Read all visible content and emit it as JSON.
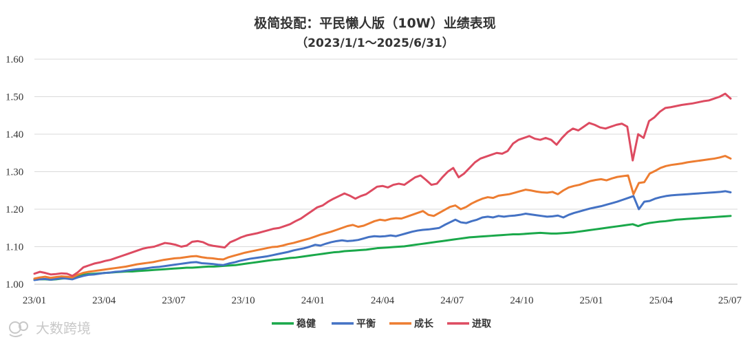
{
  "chart_data": {
    "type": "line",
    "title": "极简投配：平民懒人版（10W）业绩表现",
    "subtitle": "（2023/1/1～2025/6/31）",
    "xlabel": "",
    "ylabel": "",
    "ylim": [
      1.0,
      1.6
    ],
    "y_ticks": [
      "1.00",
      "1.10",
      "1.20",
      "1.30",
      "1.40",
      "1.50",
      "1.60"
    ],
    "x_ticks": [
      "23/01",
      "23/04",
      "23/07",
      "23/10",
      "24/01",
      "24/04",
      "24/07",
      "24/10",
      "25/01",
      "25/04",
      "25/07"
    ],
    "x_range": [
      "2023-01",
      "2025-07"
    ],
    "grid": "horizontal",
    "legend_position": "bottom",
    "series": [
      {
        "name": "稳健",
        "color": "#1aa84a",
        "values": [
          1.012,
          1.013,
          1.013,
          1.012,
          1.013,
          1.015,
          1.016,
          1.018,
          1.023,
          1.025,
          1.027,
          1.028,
          1.029,
          1.03,
          1.031,
          1.032,
          1.033,
          1.034,
          1.034,
          1.035,
          1.036,
          1.037,
          1.038,
          1.039,
          1.04,
          1.041,
          1.042,
          1.043,
          1.044,
          1.044,
          1.045,
          1.046,
          1.047,
          1.047,
          1.048,
          1.049,
          1.05,
          1.051,
          1.053,
          1.055,
          1.057,
          1.059,
          1.061,
          1.063,
          1.065,
          1.066,
          1.068,
          1.07,
          1.071,
          1.073,
          1.075,
          1.077,
          1.079,
          1.081,
          1.083,
          1.085,
          1.086,
          1.088,
          1.089,
          1.09,
          1.091,
          1.092,
          1.094,
          1.096,
          1.097,
          1.098,
          1.099,
          1.1,
          1.101,
          1.103,
          1.105,
          1.107,
          1.109,
          1.111,
          1.113,
          1.115,
          1.117,
          1.119,
          1.121,
          1.123,
          1.125,
          1.126,
          1.127,
          1.128,
          1.129,
          1.13,
          1.131,
          1.132,
          1.133,
          1.133,
          1.134,
          1.135,
          1.136,
          1.137,
          1.136,
          1.135,
          1.135,
          1.136,
          1.137,
          1.138,
          1.14,
          1.142,
          1.144,
          1.146,
          1.148,
          1.15,
          1.152,
          1.154,
          1.156,
          1.158,
          1.16,
          1.155,
          1.16,
          1.163,
          1.165,
          1.167,
          1.168,
          1.17,
          1.172,
          1.173,
          1.174,
          1.175,
          1.176,
          1.177,
          1.178,
          1.179,
          1.18,
          1.181,
          1.182
        ]
      },
      {
        "name": "平衡",
        "color": "#4472c4",
        "values": [
          1.011,
          1.013,
          1.014,
          1.012,
          1.014,
          1.016,
          1.015,
          1.013,
          1.018,
          1.022,
          1.025,
          1.026,
          1.028,
          1.03,
          1.031,
          1.033,
          1.034,
          1.036,
          1.038,
          1.04,
          1.041,
          1.043,
          1.045,
          1.046,
          1.048,
          1.05,
          1.052,
          1.054,
          1.056,
          1.058,
          1.059,
          1.056,
          1.055,
          1.054,
          1.052,
          1.051,
          1.055,
          1.058,
          1.062,
          1.065,
          1.068,
          1.07,
          1.072,
          1.074,
          1.077,
          1.08,
          1.083,
          1.086,
          1.09,
          1.093,
          1.096,
          1.1,
          1.105,
          1.103,
          1.108,
          1.112,
          1.115,
          1.117,
          1.115,
          1.116,
          1.118,
          1.122,
          1.126,
          1.128,
          1.127,
          1.128,
          1.13,
          1.128,
          1.132,
          1.136,
          1.14,
          1.143,
          1.145,
          1.146,
          1.148,
          1.15,
          1.158,
          1.165,
          1.172,
          1.165,
          1.163,
          1.168,
          1.172,
          1.178,
          1.18,
          1.178,
          1.182,
          1.18,
          1.182,
          1.183,
          1.185,
          1.188,
          1.186,
          1.184,
          1.182,
          1.18,
          1.181,
          1.183,
          1.178,
          1.185,
          1.19,
          1.194,
          1.198,
          1.202,
          1.205,
          1.208,
          1.212,
          1.216,
          1.22,
          1.225,
          1.23,
          1.235,
          1.2,
          1.22,
          1.222,
          1.228,
          1.232,
          1.235,
          1.237,
          1.238,
          1.239,
          1.24,
          1.241,
          1.242,
          1.243,
          1.244,
          1.245,
          1.246,
          1.248,
          1.245
        ]
      },
      {
        "name": "成长",
        "color": "#ed7d31",
        "values": [
          1.015,
          1.018,
          1.02,
          1.017,
          1.019,
          1.021,
          1.02,
          1.018,
          1.025,
          1.03,
          1.033,
          1.035,
          1.037,
          1.039,
          1.041,
          1.043,
          1.045,
          1.047,
          1.05,
          1.053,
          1.055,
          1.057,
          1.059,
          1.062,
          1.065,
          1.067,
          1.069,
          1.07,
          1.072,
          1.074,
          1.075,
          1.072,
          1.07,
          1.069,
          1.067,
          1.066,
          1.072,
          1.076,
          1.08,
          1.084,
          1.087,
          1.09,
          1.093,
          1.096,
          1.099,
          1.1,
          1.103,
          1.107,
          1.11,
          1.114,
          1.118,
          1.122,
          1.127,
          1.132,
          1.136,
          1.14,
          1.145,
          1.15,
          1.155,
          1.158,
          1.153,
          1.156,
          1.162,
          1.168,
          1.172,
          1.17,
          1.174,
          1.176,
          1.175,
          1.18,
          1.185,
          1.19,
          1.195,
          1.185,
          1.182,
          1.19,
          1.198,
          1.206,
          1.21,
          1.2,
          1.206,
          1.215,
          1.222,
          1.228,
          1.232,
          1.23,
          1.236,
          1.238,
          1.24,
          1.244,
          1.248,
          1.252,
          1.25,
          1.247,
          1.245,
          1.244,
          1.246,
          1.24,
          1.25,
          1.258,
          1.262,
          1.265,
          1.27,
          1.275,
          1.278,
          1.28,
          1.277,
          1.282,
          1.286,
          1.288,
          1.29,
          1.24,
          1.27,
          1.272,
          1.295,
          1.302,
          1.31,
          1.315,
          1.318,
          1.32,
          1.322,
          1.325,
          1.327,
          1.329,
          1.331,
          1.333,
          1.335,
          1.338,
          1.342,
          1.335
        ]
      },
      {
        "name": "进取",
        "color": "#dd4b61",
        "values": [
          1.028,
          1.033,
          1.03,
          1.026,
          1.027,
          1.029,
          1.028,
          1.022,
          1.032,
          1.045,
          1.05,
          1.055,
          1.058,
          1.062,
          1.065,
          1.07,
          1.075,
          1.08,
          1.085,
          1.09,
          1.095,
          1.098,
          1.1,
          1.105,
          1.11,
          1.108,
          1.105,
          1.1,
          1.103,
          1.113,
          1.115,
          1.112,
          1.105,
          1.102,
          1.1,
          1.098,
          1.112,
          1.118,
          1.125,
          1.13,
          1.133,
          1.136,
          1.14,
          1.144,
          1.148,
          1.15,
          1.155,
          1.16,
          1.168,
          1.175,
          1.185,
          1.195,
          1.205,
          1.21,
          1.22,
          1.228,
          1.235,
          1.242,
          1.236,
          1.228,
          1.235,
          1.24,
          1.25,
          1.26,
          1.262,
          1.258,
          1.265,
          1.268,
          1.265,
          1.275,
          1.285,
          1.29,
          1.278,
          1.265,
          1.268,
          1.285,
          1.3,
          1.31,
          1.285,
          1.295,
          1.31,
          1.325,
          1.335,
          1.34,
          1.345,
          1.35,
          1.348,
          1.355,
          1.375,
          1.385,
          1.39,
          1.395,
          1.388,
          1.385,
          1.39,
          1.385,
          1.372,
          1.39,
          1.405,
          1.415,
          1.41,
          1.42,
          1.43,
          1.425,
          1.418,
          1.415,
          1.42,
          1.425,
          1.428,
          1.42,
          1.33,
          1.4,
          1.39,
          1.435,
          1.445,
          1.46,
          1.47,
          1.472,
          1.475,
          1.478,
          1.48,
          1.482,
          1.485,
          1.488,
          1.49,
          1.495,
          1.5,
          1.508,
          1.495
        ]
      }
    ]
  },
  "watermark": {
    "text": "大数跨境"
  }
}
